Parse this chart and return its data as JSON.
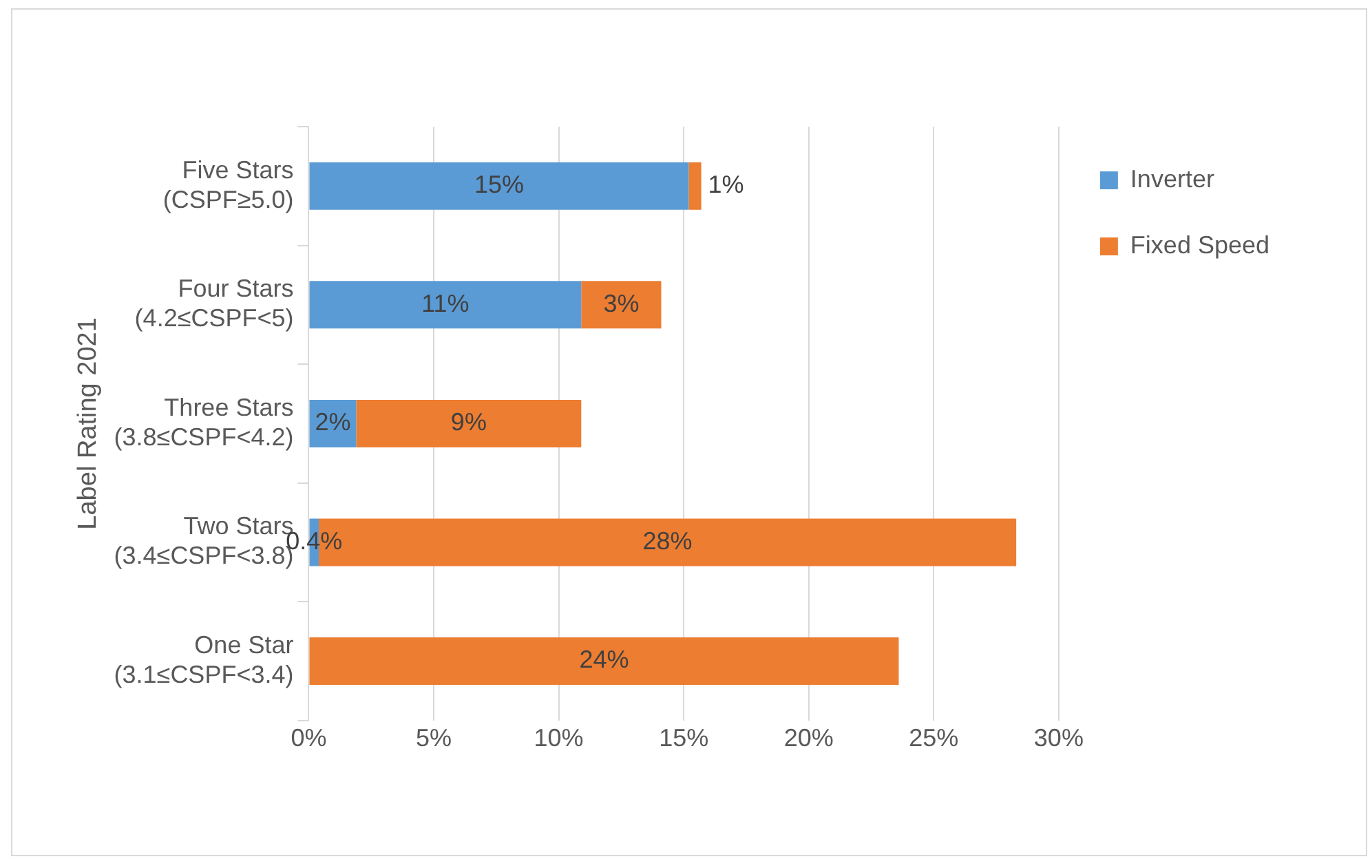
{
  "chart_data": {
    "type": "bar",
    "orientation": "horizontal",
    "stacked": true,
    "ylabel": "Label Rating 2021",
    "categories": [
      "Five Stars\n(CSPF≥5.0)",
      "Four Stars\n(4.2≤CSPF<5)",
      "Three Stars\n(3.8≤CSPF<4.2)",
      "Two Stars\n(3.4≤CSPF<3.8)",
      "One Star\n(3.1≤CSPF<3.4)"
    ],
    "series": [
      {
        "name": "Inverter",
        "color": "#5b9bd5",
        "values": [
          15.2,
          10.9,
          1.9,
          0.4,
          null
        ],
        "value_labels": [
          "15%",
          "11%",
          "2%",
          "0.4%",
          null
        ]
      },
      {
        "name": "Fixed Speed",
        "color": "#ed7d31",
        "values": [
          0.5,
          3.2,
          9.0,
          27.9,
          23.6
        ],
        "value_labels": [
          "1%",
          "3%",
          "9%",
          "28%",
          "24%"
        ]
      }
    ],
    "xlim": [
      0,
      30
    ],
    "xticks": [
      {
        "value": 0,
        "label": "0%"
      },
      {
        "value": 5,
        "label": "5%"
      },
      {
        "value": 10,
        "label": "10%"
      },
      {
        "value": 15,
        "label": "15%"
      },
      {
        "value": 20,
        "label": "20%"
      },
      {
        "value": 25,
        "label": "25%"
      },
      {
        "value": 30,
        "label": "30%"
      }
    ],
    "grid": "x",
    "legend": "right"
  }
}
